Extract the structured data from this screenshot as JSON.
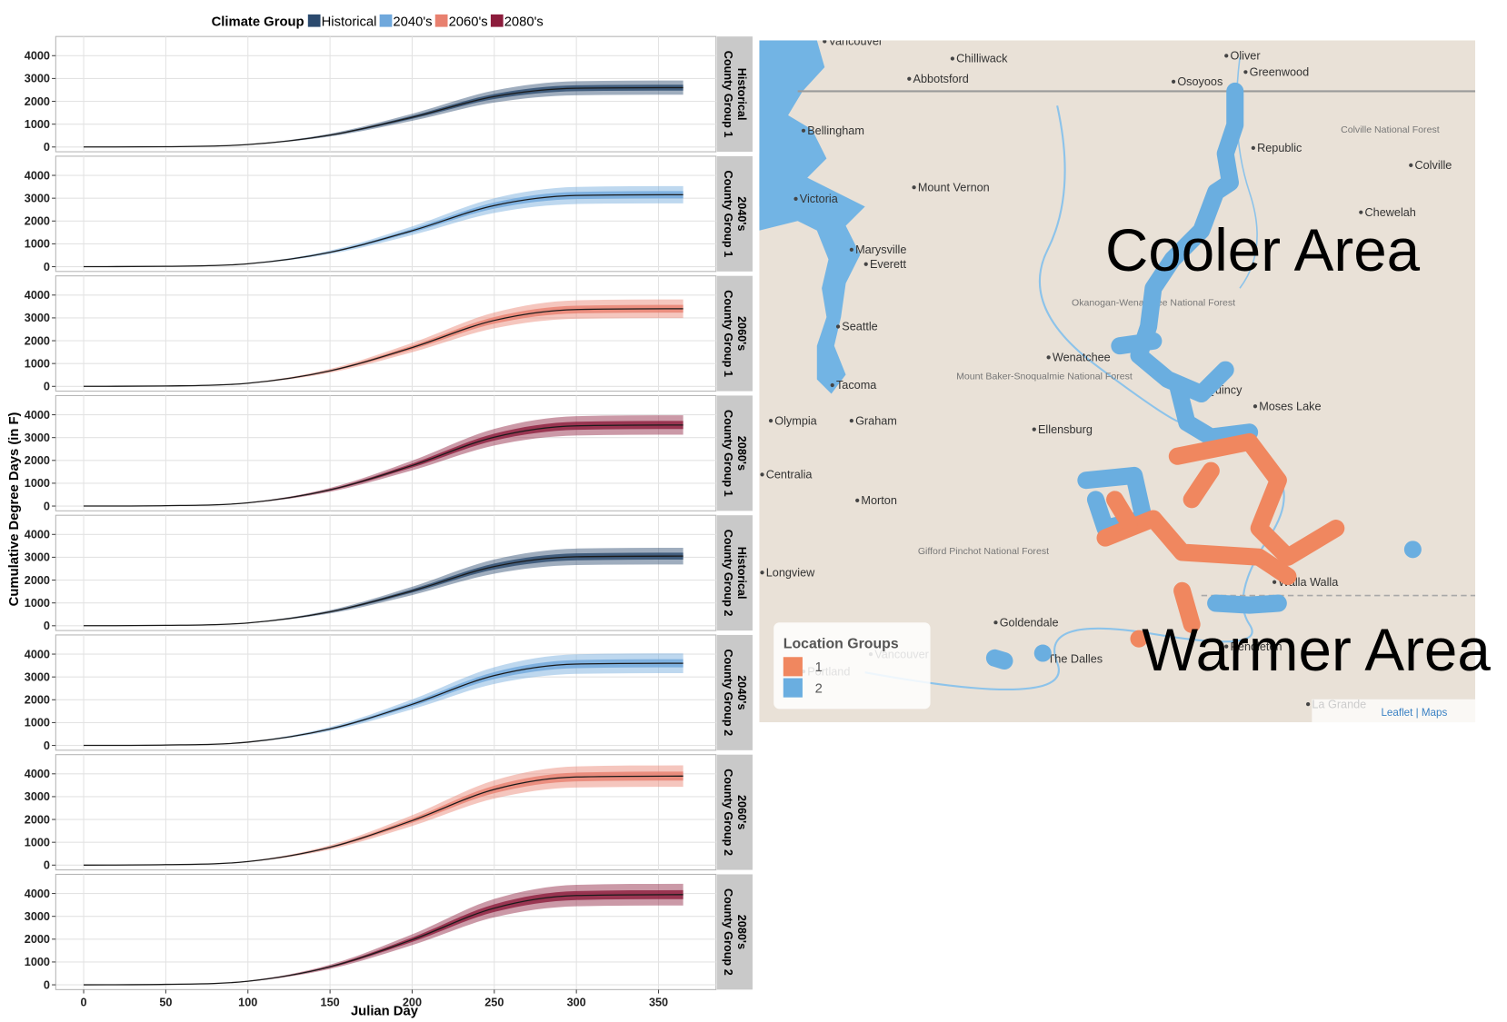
{
  "legend": {
    "title": "Climate Group",
    "items": [
      {
        "name": "Historical",
        "color": "#2b4a6e"
      },
      {
        "name": "2040's",
        "color": "#6fa8dc"
      },
      {
        "name": "2060's",
        "color": "#e8806f"
      },
      {
        "name": "2080's",
        "color": "#8c1c3c"
      }
    ]
  },
  "y_label": "Cumulative Degree Days (in F)",
  "x_label": "Julian Day",
  "chart_data": [
    {
      "type": "line",
      "facet": [
        "Historical",
        "County Group 1"
      ],
      "color": "#2b4a6e",
      "line_color": "#1a1a1a",
      "x": [
        0,
        50,
        100,
        150,
        200,
        250,
        300,
        365
      ],
      "values": [
        0,
        13,
        104,
        520,
        1300,
        2210,
        2574,
        2600
      ],
      "ranges": [
        {
          "lower": [
            0,
            11,
            92,
            458,
            1144,
            1945,
            2265,
            2288
          ],
          "upper": [
            0,
            15,
            116,
            582,
            1456,
            2475,
            2883,
            2912
          ]
        },
        {
          "lower": [
            0,
            12,
            99,
            494,
            1235,
            2100,
            2445,
            2470
          ],
          "upper": [
            0,
            14,
            109,
            546,
            1365,
            2321,
            2703,
            2730
          ]
        }
      ],
      "xlim": [
        -17,
        385
      ],
      "ylim": [
        -210,
        4840
      ],
      "xticks": [
        0,
        50,
        100,
        150,
        200,
        250,
        300,
        350
      ],
      "yticks": [
        0,
        1000,
        2000,
        3000,
        4000
      ],
      "grid": true
    },
    {
      "type": "line",
      "facet": [
        "2040's",
        "County Group 1"
      ],
      "color": "#6fa8dc",
      "line_color": "#1a1a1a",
      "x": [
        0,
        50,
        100,
        150,
        200,
        250,
        300,
        365
      ],
      "values": [
        0,
        16,
        126,
        630,
        1575,
        2678,
        3119,
        3150
      ],
      "ranges": [
        {
          "lower": [
            0,
            14,
            111,
            554,
            1386,
            2357,
            2745,
            2772
          ],
          "upper": [
            0,
            18,
            141,
            706,
            1764,
            2999,
            3493,
            3528
          ]
        },
        {
          "lower": [
            0,
            15,
            120,
            599,
            1496,
            2544,
            2963,
            2993
          ],
          "upper": [
            0,
            17,
            132,
            662,
            1654,
            2812,
            3275,
            3308
          ]
        }
      ],
      "xlim": [
        -17,
        385
      ],
      "ylim": [
        -210,
        4840
      ],
      "xticks": [
        0,
        50,
        100,
        150,
        200,
        250,
        300,
        350
      ],
      "yticks": [
        0,
        1000,
        2000,
        3000,
        4000
      ],
      "grid": true
    },
    {
      "type": "line",
      "facet": [
        "2060's",
        "County Group 1"
      ],
      "color": "#e8806f",
      "line_color": "#1a1a1a",
      "x": [
        0,
        50,
        100,
        150,
        200,
        250,
        300,
        365
      ],
      "values": [
        0,
        17,
        136,
        680,
        1700,
        2890,
        3366,
        3400
      ],
      "ranges": [
        {
          "lower": [
            0,
            15,
            120,
            598,
            1496,
            2543,
            2962,
            2992
          ],
          "upper": [
            0,
            19,
            152,
            762,
            1904,
            3237,
            3770,
            3808
          ]
        },
        {
          "lower": [
            0,
            16,
            129,
            646,
            1615,
            2746,
            3198,
            3230
          ],
          "upper": [
            0,
            18,
            143,
            714,
            1785,
            3035,
            3534,
            3570
          ]
        }
      ],
      "xlim": [
        -17,
        385
      ],
      "ylim": [
        -210,
        4840
      ],
      "xticks": [
        0,
        50,
        100,
        150,
        200,
        250,
        300,
        350
      ],
      "yticks": [
        0,
        1000,
        2000,
        3000,
        4000
      ],
      "grid": true
    },
    {
      "type": "line",
      "facet": [
        "2080's",
        "County Group 1"
      ],
      "color": "#8c1c3c",
      "line_color": "#1a1a1a",
      "x": [
        0,
        50,
        100,
        150,
        200,
        250,
        300,
        365
      ],
      "values": [
        0,
        18,
        142,
        710,
        1775,
        3018,
        3515,
        3550
      ],
      "ranges": [
        {
          "lower": [
            0,
            16,
            125,
            625,
            1562,
            2656,
            3093,
            3124
          ],
          "upper": [
            0,
            20,
            159,
            795,
            1988,
            3380,
            3937,
            3976
          ]
        },
        {
          "lower": [
            0,
            17,
            135,
            675,
            1686,
            2867,
            3339,
            3373
          ],
          "upper": [
            0,
            19,
            149,
            746,
            1864,
            3169,
            3691,
            3728
          ]
        }
      ],
      "xlim": [
        -17,
        385
      ],
      "ylim": [
        -210,
        4840
      ],
      "xticks": [
        0,
        50,
        100,
        150,
        200,
        250,
        300,
        350
      ],
      "yticks": [
        0,
        1000,
        2000,
        3000,
        4000
      ],
      "grid": true
    },
    {
      "type": "line",
      "facet": [
        "Historical",
        "County Group 2"
      ],
      "color": "#2b4a6e",
      "line_color": "#1a1a1a",
      "x": [
        0,
        50,
        100,
        150,
        200,
        250,
        300,
        365
      ],
      "values": [
        0,
        15,
        122,
        610,
        1525,
        2593,
        3020,
        3050
      ],
      "ranges": [
        {
          "lower": [
            0,
            13,
            107,
            537,
            1342,
            2282,
            2658,
            2684
          ],
          "upper": [
            0,
            17,
            137,
            683,
            1708,
            2904,
            3382,
            3416
          ]
        },
        {
          "lower": [
            0,
            14,
            116,
            580,
            1449,
            2463,
            2869,
            2898
          ],
          "upper": [
            0,
            16,
            128,
            641,
            1601,
            2723,
            3171,
            3203
          ]
        }
      ],
      "xlim": [
        -17,
        385
      ],
      "ylim": [
        -210,
        4840
      ],
      "xticks": [
        0,
        50,
        100,
        150,
        200,
        250,
        300,
        350
      ],
      "yticks": [
        0,
        1000,
        2000,
        3000,
        4000
      ],
      "grid": true
    },
    {
      "type": "line",
      "facet": [
        "2040's",
        "County Group 2"
      ],
      "color": "#6fa8dc",
      "line_color": "#1a1a1a",
      "x": [
        0,
        50,
        100,
        150,
        200,
        250,
        300,
        365
      ],
      "values": [
        0,
        18,
        144,
        720,
        1800,
        3060,
        3564,
        3600
      ],
      "ranges": [
        {
          "lower": [
            0,
            16,
            127,
            634,
            1584,
            2693,
            3136,
            3168
          ],
          "upper": [
            0,
            20,
            161,
            806,
            2016,
            3427,
            3992,
            4032
          ]
        },
        {
          "lower": [
            0,
            17,
            137,
            684,
            1710,
            2907,
            3386,
            3420
          ],
          "upper": [
            0,
            19,
            151,
            756,
            1890,
            3213,
            3742,
            3780
          ]
        }
      ],
      "xlim": [
        -17,
        385
      ],
      "ylim": [
        -210,
        4840
      ],
      "xticks": [
        0,
        50,
        100,
        150,
        200,
        250,
        300,
        350
      ],
      "yticks": [
        0,
        1000,
        2000,
        3000,
        4000
      ],
      "grid": true
    },
    {
      "type": "line",
      "facet": [
        "2060's",
        "County Group 2"
      ],
      "color": "#e8806f",
      "line_color": "#1a1a1a",
      "x": [
        0,
        50,
        100,
        150,
        200,
        250,
        300,
        365
      ],
      "values": [
        0,
        20,
        156,
        780,
        1950,
        3315,
        3861,
        3900
      ],
      "ranges": [
        {
          "lower": [
            0,
            18,
            137,
            686,
            1716,
            2917,
            3398,
            3432
          ],
          "upper": [
            0,
            22,
            175,
            874,
            2184,
            3713,
            4324,
            4368
          ]
        },
        {
          "lower": [
            0,
            19,
            148,
            741,
            1853,
            3149,
            3668,
            3705
          ],
          "upper": [
            0,
            21,
            164,
            819,
            2048,
            3481,
            4054,
            4095
          ]
        }
      ],
      "xlim": [
        -17,
        385
      ],
      "ylim": [
        -210,
        4840
      ],
      "xticks": [
        0,
        50,
        100,
        150,
        200,
        250,
        300,
        350
      ],
      "yticks": [
        0,
        1000,
        2000,
        3000,
        4000
      ],
      "grid": true
    },
    {
      "type": "line",
      "facet": [
        "2080's",
        "County Group 2"
      ],
      "color": "#8c1c3c",
      "line_color": "#1a1a1a",
      "x": [
        0,
        50,
        100,
        150,
        200,
        250,
        300,
        365
      ],
      "values": [
        0,
        20,
        158,
        790,
        1975,
        3358,
        3911,
        3950
      ],
      "ranges": [
        {
          "lower": [
            0,
            18,
            139,
            695,
            1738,
            2955,
            3441,
            3476
          ],
          "upper": [
            0,
            22,
            177,
            885,
            2212,
            3761,
            4380,
            4424
          ]
        },
        {
          "lower": [
            0,
            19,
            150,
            751,
            1876,
            3190,
            3715,
            3753
          ],
          "upper": [
            0,
            21,
            166,
            830,
            2074,
            3526,
            4106,
            4148
          ]
        }
      ],
      "xlim": [
        -17,
        385
      ],
      "ylim": [
        -210,
        4840
      ],
      "xticks": [
        0,
        50,
        100,
        150,
        200,
        250,
        300,
        350
      ],
      "yticks": [
        0,
        1000,
        2000,
        3000,
        4000
      ],
      "grid": true
    }
  ],
  "map": {
    "places": [
      "Vancouver",
      "Chilliwack",
      "Abbotsford",
      "Oliver",
      "Greenwood",
      "Osoyoos",
      "Bellingham",
      "Republic",
      "Colville",
      "Mount Vernon",
      "Victoria",
      "Chewelah",
      "Marysville",
      "Everett",
      "Seattle",
      "Wenatchee",
      "Tacoma",
      "Quincy",
      "Moses Lake",
      "Olympia",
      "Graham",
      "Ellensburg",
      "Centralia",
      "Morton",
      "Longview",
      "Walla Walla",
      "Goldendale",
      "Vancouver",
      "Portland",
      "The Dalles",
      "Pendleton",
      "La Grande"
    ],
    "forests": [
      "Colville National Forest",
      "Okanogan-Wenatchee National Forest",
      "Mount Baker-Snoqualmie National Forest",
      "Gifford Pinchot National Forest"
    ],
    "annotations": [
      "Cooler Area",
      "Warmer Area"
    ],
    "legend": {
      "title": "Location Groups",
      "items": [
        {
          "label": "1",
          "color": "#f0875f"
        },
        {
          "label": "2",
          "color": "#6aaee0"
        }
      ]
    },
    "attribution": "Leaflet | Maps"
  }
}
